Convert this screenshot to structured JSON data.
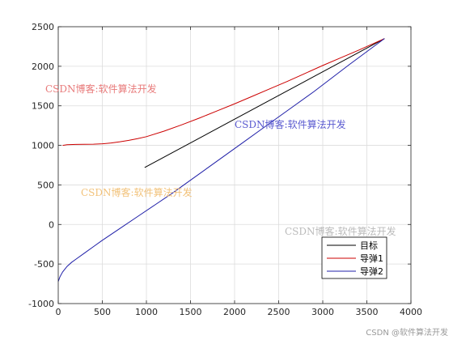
{
  "chart_data": {
    "type": "line",
    "title": "",
    "xlabel": "",
    "ylabel": "",
    "xlim": [
      0,
      4000
    ],
    "ylim": [
      -1000,
      2500
    ],
    "xticks": [
      0,
      500,
      1000,
      1500,
      2000,
      2500,
      3000,
      3500,
      4000
    ],
    "yticks": [
      -1000,
      -500,
      0,
      500,
      1000,
      1500,
      2000,
      2500
    ],
    "grid": true,
    "legend_position": "bottom-right",
    "series": [
      {
        "name": "目标",
        "color": "#000000",
        "x": [
          980,
          3700
        ],
        "y": [
          720,
          2350
        ]
      },
      {
        "name": "导弹1",
        "color": "#cc0000",
        "x": [
          50,
          100,
          200,
          300,
          400,
          500,
          600,
          700,
          800,
          900,
          1000,
          1200,
          1400,
          1600,
          1800,
          2000,
          2200,
          2400,
          2600,
          2800,
          3000,
          3200,
          3400,
          3600,
          3700
        ],
        "y": [
          1000,
          1008,
          1012,
          1013,
          1015,
          1020,
          1030,
          1045,
          1063,
          1085,
          1110,
          1180,
          1260,
          1345,
          1435,
          1525,
          1620,
          1715,
          1810,
          1910,
          2010,
          2105,
          2200,
          2300,
          2350
        ]
      },
      {
        "name": "导弹2",
        "color": "#1f1fa8",
        "x": [
          0,
          20,
          50,
          100,
          150,
          200,
          300,
          400,
          500,
          700,
          900,
          1100,
          1300,
          1500,
          1700,
          1900,
          2100,
          2300,
          2500,
          2700,
          2900,
          3100,
          3300,
          3500,
          3700
        ],
        "y": [
          -720,
          -660,
          -600,
          -530,
          -480,
          -440,
          -360,
          -280,
          -200,
          -50,
          100,
          250,
          400,
          560,
          720,
          880,
          1040,
          1200,
          1360,
          1520,
          1680,
          1850,
          2020,
          2185,
          2350
        ]
      }
    ],
    "watermarks": [
      {
        "text": "CSDN博客:软件算法开发",
        "color": "#e87a7a"
      },
      {
        "text": "CSDN博客:软件算法开发",
        "color": "#5a5ad0"
      },
      {
        "text": "CSDN博客:软件算法开发",
        "color": "#f2c27a"
      },
      {
        "text": "CSDN博客:软件算法开发",
        "color": "#bbbbbb"
      }
    ]
  },
  "footer": {
    "corner_text": "CSDN @软件算法开发"
  }
}
